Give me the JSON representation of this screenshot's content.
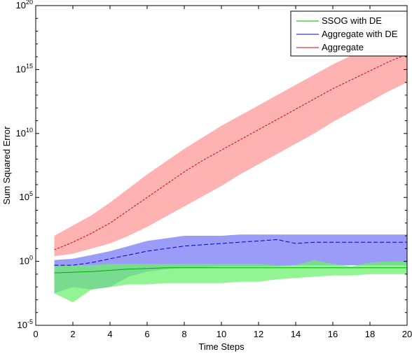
{
  "chart_data": {
    "type": "line",
    "xlabel": "Time Steps",
    "ylabel": "Sum Squared Error",
    "xlim": [
      0,
      20
    ],
    "ylim_log10": [
      -5,
      20
    ],
    "y_scale": "log",
    "x_ticks": [
      "0",
      "2",
      "4",
      "6",
      "8",
      "10",
      "12",
      "14",
      "16",
      "18",
      "20"
    ],
    "y_tick_exponents": [
      "-5",
      "0",
      "5",
      "10",
      "15",
      "20"
    ],
    "y_tick_base": "10",
    "grid": false,
    "legend_position": "top-right",
    "series": [
      {
        "name": "SSOG with DE",
        "color": "#00b000",
        "band_color": "#6ef06e",
        "x": [
          1,
          2,
          3,
          4,
          5,
          6,
          7,
          8,
          9,
          10,
          11,
          12,
          13,
          14,
          15,
          16,
          17,
          18,
          19,
          20
        ],
        "values_log10": [
          -0.9,
          -0.85,
          -0.8,
          -0.7,
          -0.6,
          -0.55,
          -0.5,
          -0.5,
          -0.5,
          -0.5,
          -0.5,
          -0.5,
          -0.5,
          -0.5,
          -0.5,
          -0.5,
          -0.5,
          -0.5,
          -0.5,
          -0.5
        ],
        "lower_log10": [
          -2.5,
          -3.2,
          -2.2,
          -2.0,
          -1.8,
          -1.8,
          -1.7,
          -1.7,
          -1.7,
          -1.7,
          -1.6,
          -1.6,
          -1.4,
          -1.3,
          -1.2,
          -1.1,
          -1.1,
          -1.0,
          -1.0,
          -1.0
        ],
        "upper_log10": [
          -0.4,
          -0.3,
          -0.3,
          -0.2,
          -0.2,
          -0.2,
          -0.2,
          -0.2,
          -0.2,
          -0.2,
          -0.2,
          -0.2,
          -0.3,
          -0.3,
          0.1,
          -0.2,
          -0.4,
          -0.1,
          0.0,
          0.0
        ]
      },
      {
        "name": "Aggregate with DE",
        "color": "#0000cc",
        "band_color": "#7a7af5",
        "x": [
          1,
          2,
          3,
          4,
          5,
          6,
          7,
          8,
          9,
          10,
          11,
          12,
          13,
          14,
          15,
          16,
          17,
          18,
          19,
          20
        ],
        "values_log10": [
          -0.3,
          -0.3,
          -0.1,
          0.2,
          0.5,
          0.8,
          1.0,
          1.2,
          1.3,
          1.4,
          1.5,
          1.6,
          1.7,
          1.4,
          1.5,
          1.5,
          1.5,
          1.5,
          1.5,
          1.5
        ],
        "lower_log10": [
          -2.5,
          -2.0,
          -2.2,
          -2.0,
          -1.2,
          -0.8,
          -0.6,
          -0.5,
          -0.5,
          -0.4,
          -0.4,
          -0.4,
          -0.4,
          -0.3,
          -0.3,
          -0.3,
          -0.3,
          -0.3,
          -0.3,
          -0.3
        ],
        "upper_log10": [
          0.1,
          0.2,
          0.5,
          0.8,
          1.2,
          1.6,
          1.8,
          2.0,
          2.0,
          2.0,
          2.1,
          2.1,
          2.1,
          2.1,
          2.1,
          2.1,
          2.1,
          2.1,
          2.1,
          2.1
        ]
      },
      {
        "name": "Aggregate",
        "color": "#d40000",
        "band_color": "#ffaaaa",
        "x": [
          1,
          2,
          3,
          4,
          5,
          6,
          7,
          8,
          9,
          10,
          11,
          12,
          13,
          14,
          15,
          16,
          17,
          18,
          19,
          20
        ],
        "values_log10": [
          0.9,
          1.5,
          2.2,
          3.0,
          4.0,
          5.0,
          6.0,
          7.0,
          7.9,
          8.7,
          9.5,
          10.3,
          11.1,
          11.9,
          12.7,
          13.5,
          14.2,
          14.9,
          15.6,
          16.2
        ],
        "lower_log10": [
          0.4,
          0.6,
          1.0,
          1.4,
          2.0,
          2.7,
          3.5,
          4.3,
          5.1,
          5.9,
          6.8,
          7.6,
          8.4,
          9.2,
          10.0,
          10.9,
          11.7,
          12.5,
          13.3,
          14.0
        ],
        "upper_log10": [
          2.0,
          2.8,
          3.6,
          4.6,
          5.7,
          6.8,
          7.8,
          8.8,
          9.7,
          10.6,
          11.4,
          12.2,
          13.0,
          13.8,
          14.6,
          15.4,
          16.1,
          16.8,
          17.5,
          18.2
        ]
      }
    ]
  }
}
